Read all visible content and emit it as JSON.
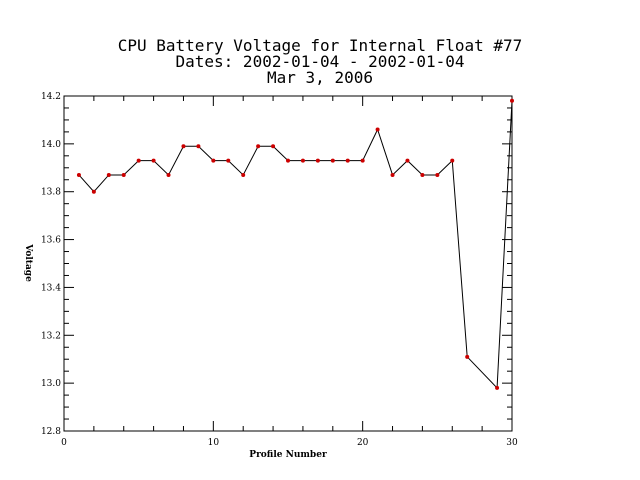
{
  "chart_data": {
    "type": "line",
    "title_lines": [
      "CPU Battery Voltage for Internal Float #77",
      "Dates:  2002-01-04 -  2002-01-04",
      "Mar  3, 2006"
    ],
    "xlabel": "Profile Number",
    "ylabel": "Voltage",
    "xlim": [
      0,
      30
    ],
    "ylim": [
      12.8,
      14.2
    ],
    "x_ticks": [
      0,
      10,
      20,
      30
    ],
    "x_tick_labels": [
      "0",
      "10",
      "20",
      "30"
    ],
    "y_ticks": [
      12.8,
      13.0,
      13.2,
      13.4,
      13.6,
      13.8,
      14.0,
      14.2
    ],
    "y_tick_labels": [
      "12.8",
      "13.0",
      "13.2",
      "13.4",
      "13.6",
      "13.8",
      "14.0",
      "14.2"
    ],
    "grid": false,
    "line_color": "#000000",
    "marker_color": "#cc0000",
    "x": [
      1,
      2,
      3,
      4,
      5,
      6,
      7,
      8,
      9,
      10,
      11,
      12,
      13,
      14,
      15,
      16,
      17,
      18,
      19,
      20,
      21,
      22,
      23,
      24,
      25,
      26,
      27,
      29,
      30
    ],
    "y": [
      13.87,
      13.8,
      13.87,
      13.87,
      13.93,
      13.93,
      13.87,
      13.99,
      13.99,
      13.93,
      13.93,
      13.87,
      13.99,
      13.99,
      13.93,
      13.93,
      13.93,
      13.93,
      13.93,
      13.93,
      14.06,
      13.87,
      13.93,
      13.87,
      13.87,
      13.93,
      13.11,
      12.98,
      14.18
    ]
  }
}
